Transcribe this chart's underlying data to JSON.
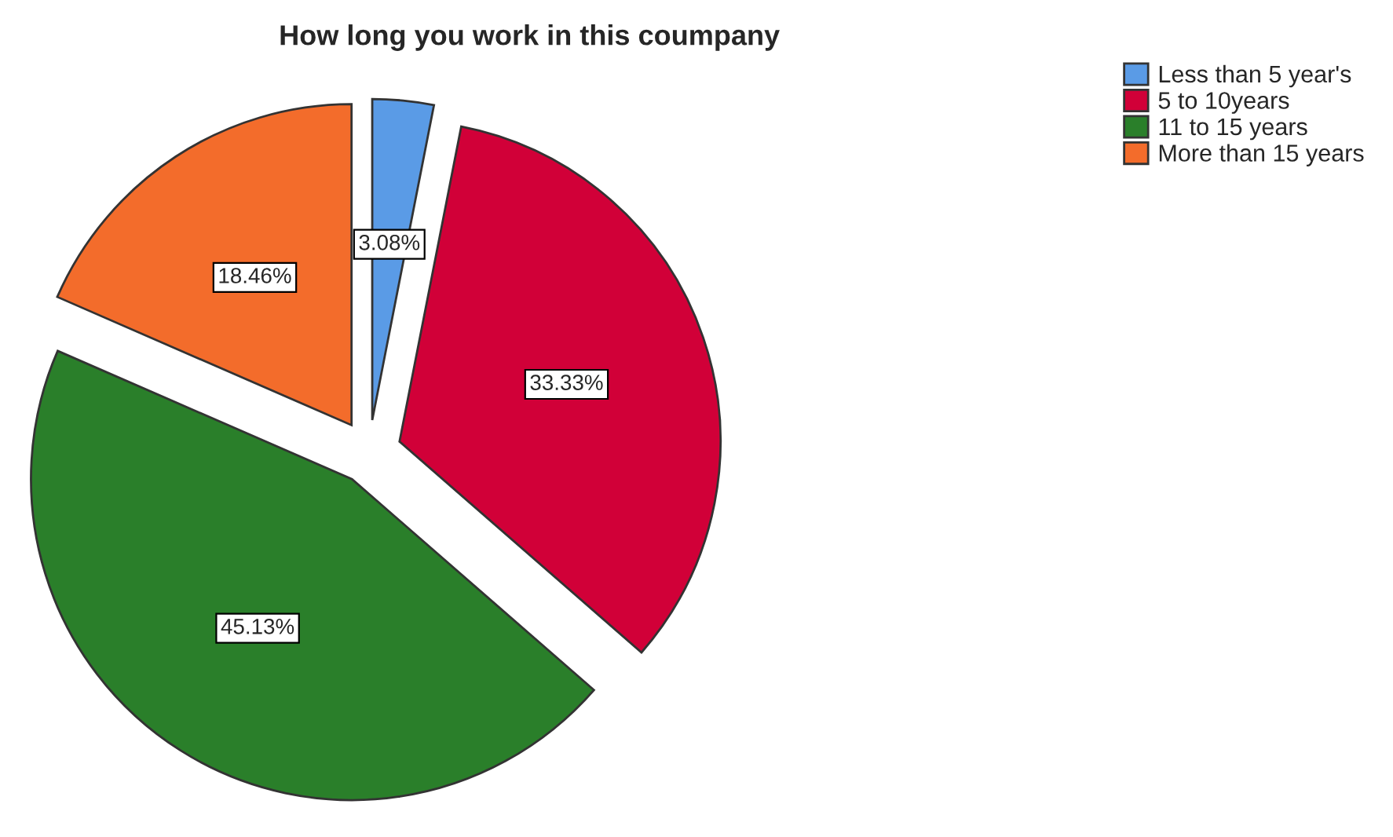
{
  "chart_data": {
    "type": "pie",
    "title": "How long you work in this coumpany",
    "categories": [
      "Less than 5 year's",
      "5 to 10years",
      "11 to 15 years",
      "More than 15 years"
    ],
    "values": [
      3.08,
      33.33,
      45.13,
      18.46
    ],
    "value_labels": [
      "3.08%",
      "33.33%",
      "45.13%",
      "18.46%"
    ],
    "colors": [
      "#5a9be6",
      "#d10038",
      "#2a7f2a",
      "#f36c2b"
    ],
    "legend": "top right"
  }
}
